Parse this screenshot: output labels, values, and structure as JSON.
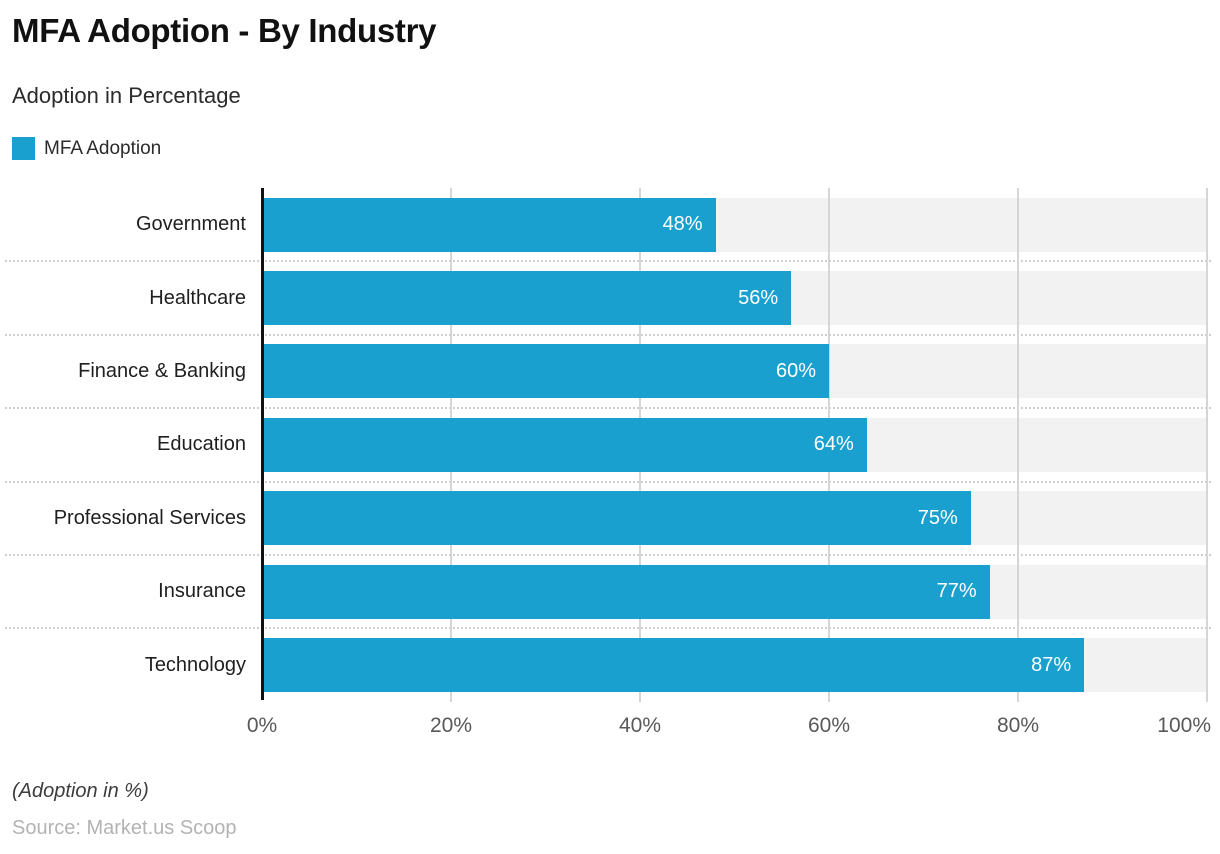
{
  "title": "MFA Adoption - By Industry",
  "subtitle": "Adoption in Percentage",
  "legend": {
    "label": "MFA Adoption"
  },
  "colors": {
    "bar": "#1aa0ce",
    "track": "#f2f2f2",
    "gridline": "#d6d6d6",
    "axis": "#111111"
  },
  "chart_data": {
    "type": "bar",
    "orientation": "horizontal",
    "title": "MFA Adoption - By Industry",
    "subtitle": "Adoption in Percentage",
    "series_name": "MFA Adoption",
    "categories": [
      "Government",
      "Healthcare",
      "Finance & Banking",
      "Education",
      "Professional Services",
      "Insurance",
      "Technology"
    ],
    "values": [
      48,
      56,
      60,
      64,
      75,
      77,
      87
    ],
    "value_labels": [
      "48%",
      "56%",
      "60%",
      "64%",
      "75%",
      "77%",
      "87%"
    ],
    "xlabel": "",
    "ylabel": "",
    "xlim": [
      0,
      100
    ],
    "x_ticks": [
      "0%",
      "20%",
      "40%",
      "60%",
      "80%",
      "100%"
    ],
    "grid": true,
    "legend_position": "top-left"
  },
  "footer": {
    "note": "(Adoption in %)",
    "source": "Source: Market.us Scoop"
  }
}
